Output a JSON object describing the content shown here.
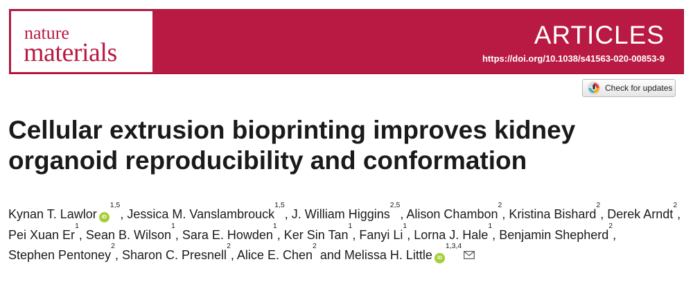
{
  "journal": {
    "logo_line1": "nature",
    "logo_line2": "materials",
    "article_type": "ARTICLES",
    "doi": "https://doi.org/10.1038/s41563-020-00853-9",
    "brand_color": "#b91a43"
  },
  "check_updates": {
    "label": "Check for updates",
    "icon": "crossmark-icon"
  },
  "title": "Cellular extrusion bioprinting improves kidney organoid reproducibility and conformation",
  "authors": [
    {
      "name": "Kynan T. Lawlor",
      "orcid": true,
      "affiliations": "1,5",
      "sep": ", "
    },
    {
      "name": "Jessica M. Vanslambrouck",
      "orcid": false,
      "affiliations": "1,5",
      "sep": ", "
    },
    {
      "name": "J. William Higgins",
      "orcid": false,
      "affiliations": "2,5",
      "sep": ", "
    },
    {
      "name": "Alison Chambon",
      "orcid": false,
      "affiliations": "2",
      "sep": ", "
    },
    {
      "name": "Kristina Bishard",
      "orcid": false,
      "affiliations": "2",
      "sep": ", "
    },
    {
      "name": "Derek Arndt",
      "orcid": false,
      "affiliations": "2",
      "sep": ", "
    },
    {
      "name": "Pei Xuan Er",
      "orcid": false,
      "affiliations": "1",
      "sep": ", "
    },
    {
      "name": "Sean B. Wilson",
      "orcid": false,
      "affiliations": "1",
      "sep": ", "
    },
    {
      "name": "Sara E. Howden",
      "orcid": false,
      "affiliations": "1",
      "sep": ", "
    },
    {
      "name": "Ker Sin Tan",
      "orcid": false,
      "affiliations": "1",
      "sep": ", "
    },
    {
      "name": "Fanyi Li",
      "orcid": false,
      "affiliations": "1",
      "sep": ", "
    },
    {
      "name": "Lorna J. Hale",
      "orcid": false,
      "affiliations": "1",
      "sep": ", "
    },
    {
      "name": "Benjamin Shepherd",
      "orcid": false,
      "affiliations": "2",
      "sep": ", "
    },
    {
      "name": "Stephen Pentoney",
      "orcid": false,
      "affiliations": "2",
      "sep": ", "
    },
    {
      "name": "Sharon C. Presnell",
      "orcid": false,
      "affiliations": "2",
      "sep": ", "
    },
    {
      "name": "Alice E. Chen",
      "orcid": false,
      "affiliations": "2",
      "sep": " and "
    },
    {
      "name": "Melissa H. Little",
      "orcid": true,
      "affiliations": "1,3,4",
      "sep": "",
      "corresponding": true
    }
  ],
  "icons": {
    "orcid": "orcid-icon",
    "orcid_text": "iD",
    "mail": "envelope-icon",
    "orcid_color": "#a6ce39"
  }
}
